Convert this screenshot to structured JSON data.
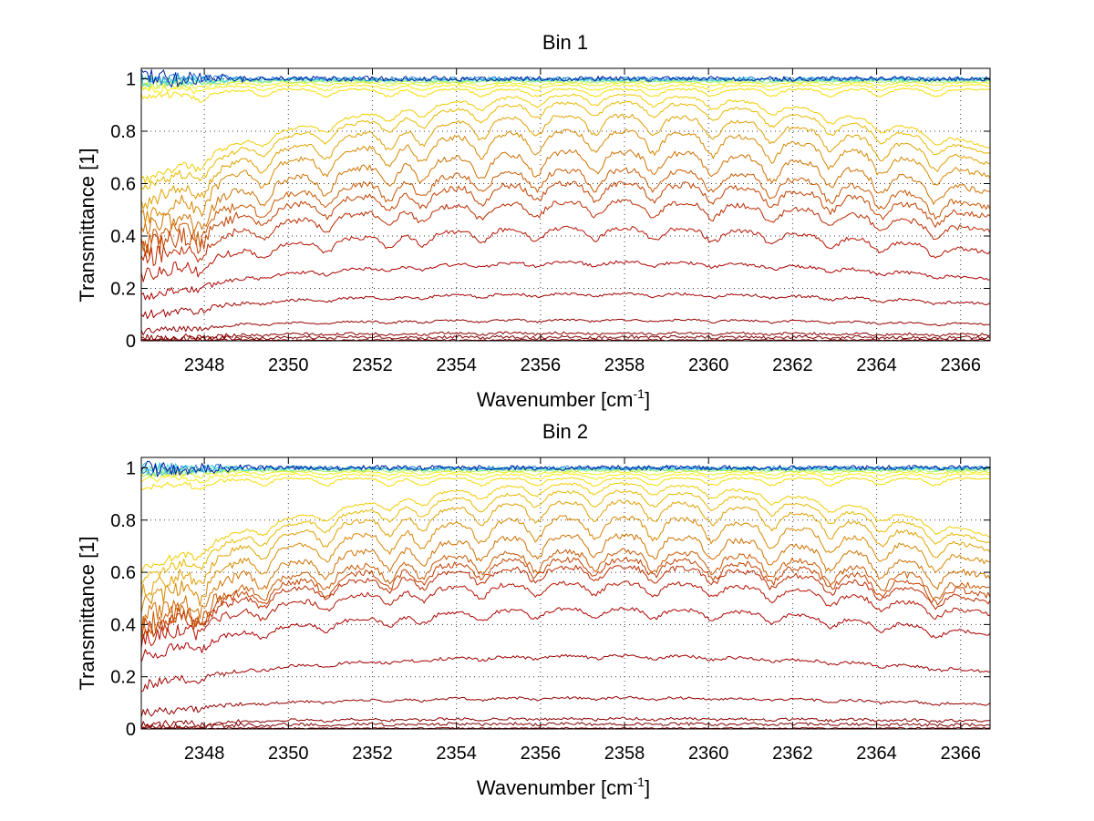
{
  "chart_data": [
    {
      "type": "line",
      "title": "Bin 1",
      "xlabel_prefix": "Wavenumber [cm",
      "xlabel_sup": "-1",
      "xlabel_suffix": "]",
      "ylabel": "Transmittance [1]",
      "xlim": [
        2346.5,
        2366.7
      ],
      "ylim": [
        0,
        1.04
      ],
      "xticks": [
        2348,
        2350,
        2352,
        2354,
        2356,
        2358,
        2360,
        2362,
        2364,
        2366
      ],
      "yticks": [
        0,
        0.2,
        0.4,
        0.6,
        0.8,
        1
      ],
      "ytick_labels": [
        "0",
        "0.2",
        "0.4",
        "0.6",
        "0.8",
        "1"
      ],
      "grid": true,
      "series": [
        {
          "color": "#7a0000",
          "level": 0.0,
          "noise": 0.006,
          "lines": 0.2
        },
        {
          "color": "#800000",
          "level": 0.015,
          "noise": 0.006,
          "lines": 0.2
        },
        {
          "color": "#8c0000",
          "level": 0.03,
          "noise": 0.005,
          "lines": 0.3
        },
        {
          "color": "#950000",
          "level": 0.08,
          "noise": 0.004,
          "lines": 0.4
        },
        {
          "color": "#a00000",
          "level": 0.18,
          "noise": 0.005,
          "lines": 0.6
        },
        {
          "color": "#ac0000",
          "level": 0.3,
          "noise": 0.006,
          "lines": 0.8
        },
        {
          "color": "#b51200",
          "level": 0.43,
          "noise": 0.008,
          "lines": 1.0
        },
        {
          "color": "#bb2a00",
          "level": 0.53,
          "noise": 0.01,
          "lines": 1.2
        },
        {
          "color": "#c24000",
          "level": 0.6,
          "noise": 0.012,
          "lines": 1.4
        },
        {
          "color": "#c95800",
          "level": 0.65,
          "noise": 0.012,
          "lines": 1.6
        },
        {
          "color": "#d07000",
          "level": 0.72,
          "noise": 0.012,
          "lines": 1.8
        },
        {
          "color": "#d88800",
          "level": 0.8,
          "noise": 0.01,
          "lines": 1.8
        },
        {
          "color": "#e0a000",
          "level": 0.86,
          "noise": 0.008,
          "lines": 1.6
        },
        {
          "color": "#e8b800",
          "level": 0.91,
          "noise": 0.006,
          "lines": 1.2
        },
        {
          "color": "#f0cc00",
          "level": 0.94,
          "noise": 0.005,
          "lines": 0.9
        },
        {
          "color": "#f5dc00",
          "level": 0.96,
          "noise": 0.004,
          "lines": 0.6
        },
        {
          "color": "#f8ec10",
          "level": 0.975,
          "noise": 0.004,
          "lines": 0.4
        },
        {
          "color": "#e8f020",
          "level": 0.985,
          "noise": 0.004,
          "lines": 0.25
        },
        {
          "color": "#b0f060",
          "level": 0.99,
          "noise": 0.005,
          "lines": 0.15
        },
        {
          "color": "#70e8a0",
          "level": 0.995,
          "noise": 0.006,
          "lines": 0.1
        },
        {
          "color": "#30d0e0",
          "level": 0.998,
          "noise": 0.007,
          "lines": 0.05
        },
        {
          "color": "#2080e0",
          "level": 1.0,
          "noise": 0.008,
          "lines": 0.0
        },
        {
          "color": "#0020a0",
          "level": 1.0,
          "noise": 0.01,
          "lines": 0.0
        }
      ]
    },
    {
      "type": "line",
      "title": "Bin 2",
      "xlabel_prefix": "Wavenumber [cm",
      "xlabel_sup": "-1",
      "xlabel_suffix": "]",
      "ylabel": "Transmittance [1]",
      "xlim": [
        2346.5,
        2366.7
      ],
      "ylim": [
        0,
        1.04
      ],
      "xticks": [
        2348,
        2350,
        2352,
        2354,
        2356,
        2358,
        2360,
        2362,
        2364,
        2366
      ],
      "yticks": [
        0,
        0.2,
        0.4,
        0.6,
        0.8,
        1
      ],
      "ytick_labels": [
        "0",
        "0.2",
        "0.4",
        "0.6",
        "0.8",
        "1"
      ],
      "grid": true,
      "series": [
        {
          "color": "#7a0000",
          "level": 0.0,
          "noise": 0.006,
          "lines": 0.2
        },
        {
          "color": "#800000",
          "level": 0.02,
          "noise": 0.006,
          "lines": 0.2
        },
        {
          "color": "#8c0000",
          "level": 0.04,
          "noise": 0.005,
          "lines": 0.3
        },
        {
          "color": "#950000",
          "level": 0.12,
          "noise": 0.005,
          "lines": 0.4
        },
        {
          "color": "#a00000",
          "level": 0.28,
          "noise": 0.006,
          "lines": 0.6
        },
        {
          "color": "#ac0000",
          "level": 0.46,
          "noise": 0.007,
          "lines": 0.8
        },
        {
          "color": "#b51200",
          "level": 0.56,
          "noise": 0.009,
          "lines": 1.0
        },
        {
          "color": "#bb2a00",
          "level": 0.62,
          "noise": 0.01,
          "lines": 1.2
        },
        {
          "color": "#c24000",
          "level": 0.65,
          "noise": 0.012,
          "lines": 1.4
        },
        {
          "color": "#c95800",
          "level": 0.68,
          "noise": 0.012,
          "lines": 1.6
        },
        {
          "color": "#d07000",
          "level": 0.74,
          "noise": 0.012,
          "lines": 1.8
        },
        {
          "color": "#d88800",
          "level": 0.81,
          "noise": 0.01,
          "lines": 1.8
        },
        {
          "color": "#e0a000",
          "level": 0.87,
          "noise": 0.008,
          "lines": 1.6
        },
        {
          "color": "#e8b800",
          "level": 0.91,
          "noise": 0.006,
          "lines": 1.2
        },
        {
          "color": "#f0cc00",
          "level": 0.94,
          "noise": 0.005,
          "lines": 0.9
        },
        {
          "color": "#f5dc00",
          "level": 0.96,
          "noise": 0.004,
          "lines": 0.6
        },
        {
          "color": "#f8ec10",
          "level": 0.975,
          "noise": 0.004,
          "lines": 0.4
        },
        {
          "color": "#e8f020",
          "level": 0.985,
          "noise": 0.004,
          "lines": 0.25
        },
        {
          "color": "#b0f060",
          "level": 0.99,
          "noise": 0.005,
          "lines": 0.15
        },
        {
          "color": "#70e8a0",
          "level": 0.995,
          "noise": 0.006,
          "lines": 0.1
        },
        {
          "color": "#30d0e0",
          "level": 0.998,
          "noise": 0.007,
          "lines": 0.05
        },
        {
          "color": "#2080e0",
          "level": 1.0,
          "noise": 0.008,
          "lines": 0.0
        },
        {
          "color": "#0020a0",
          "level": 1.0,
          "noise": 0.01,
          "lines": 0.0
        }
      ]
    }
  ]
}
